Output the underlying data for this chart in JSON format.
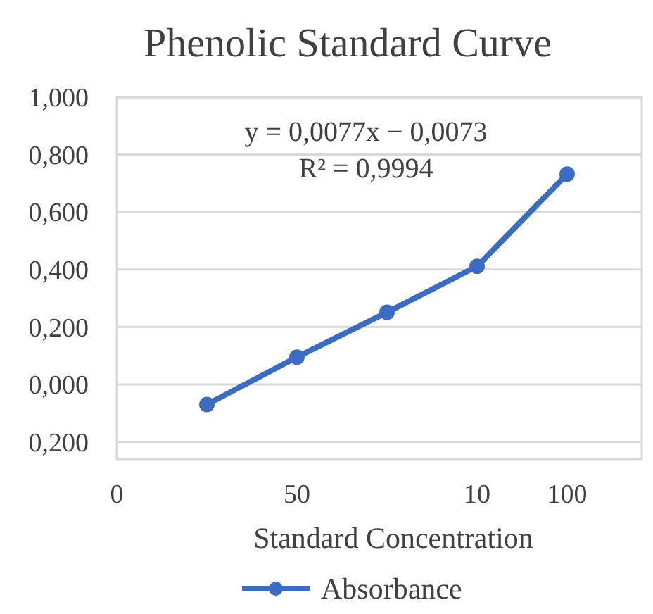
{
  "chart_data": {
    "type": "line",
    "title": "Phenolic Standard Curve",
    "xlabel": "Standard Concentration",
    "categories": [
      "0",
      null,
      "50",
      null,
      "10",
      "100"
    ],
    "series": [
      {
        "name": "Absorbance",
        "color": "#3a6cc6",
        "values": [
          null,
          -0.07,
          0.095,
          0.251,
          0.411,
          0.732
        ]
      }
    ],
    "ylim": [
      -0.26,
      1
    ],
    "yticks": [
      {
        "value": -0.2,
        "label": "0,200"
      },
      {
        "value": 0,
        "label": "0,000"
      },
      {
        "value": 0.2,
        "label": "0,200"
      },
      {
        "value": 0.4,
        "label": "0,400"
      },
      {
        "value": 0.6,
        "label": "0,600"
      },
      {
        "value": 0.8,
        "label": "0,800"
      },
      {
        "value": 1,
        "label": "1,000"
      }
    ],
    "annotations": [
      "y = 0,0077x − 0,0073",
      "R² = 0,9994"
    ],
    "grid": "y",
    "legend": "bottom",
    "marker": "circle",
    "line_style": "solid"
  }
}
